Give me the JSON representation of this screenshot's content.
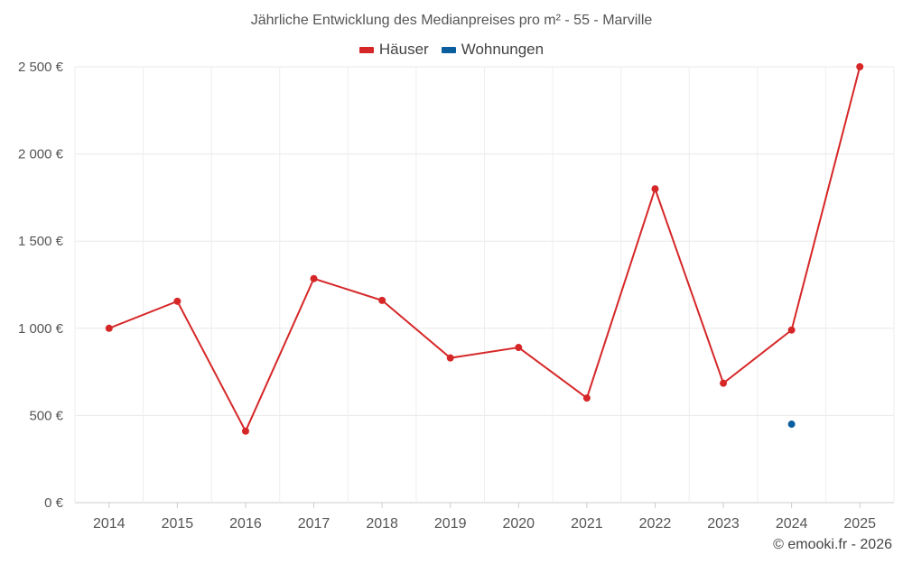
{
  "chart_data": {
    "type": "line",
    "title": "Jährliche Entwicklung des Medianpreises pro m² - 55 - Marville",
    "categories": [
      "2014",
      "2015",
      "2016",
      "2017",
      "2018",
      "2019",
      "2020",
      "2021",
      "2022",
      "2023",
      "2024",
      "2025"
    ],
    "series": [
      {
        "name": "Häuser",
        "color": "#d62728",
        "values": [
          1000,
          1155,
          410,
          1285,
          1160,
          830,
          890,
          600,
          1800,
          685,
          990,
          2500
        ]
      },
      {
        "name": "Wohnungen",
        "color": "#0a5e9e",
        "values": [
          null,
          null,
          null,
          null,
          null,
          null,
          null,
          null,
          null,
          null,
          450,
          null
        ]
      }
    ],
    "ylim": [
      0,
      2500
    ],
    "yticks": [
      0,
      500,
      1000,
      1500,
      2000,
      2500
    ],
    "ytick_labels": [
      "0 €",
      "500 €",
      "1 000 €",
      "1 500 €",
      "2 000 €",
      "2 500 €"
    ],
    "xlabel": "",
    "ylabel": "",
    "grid": true,
    "legend_position": "top-center"
  },
  "credit": "© emooki.fr - 2026"
}
